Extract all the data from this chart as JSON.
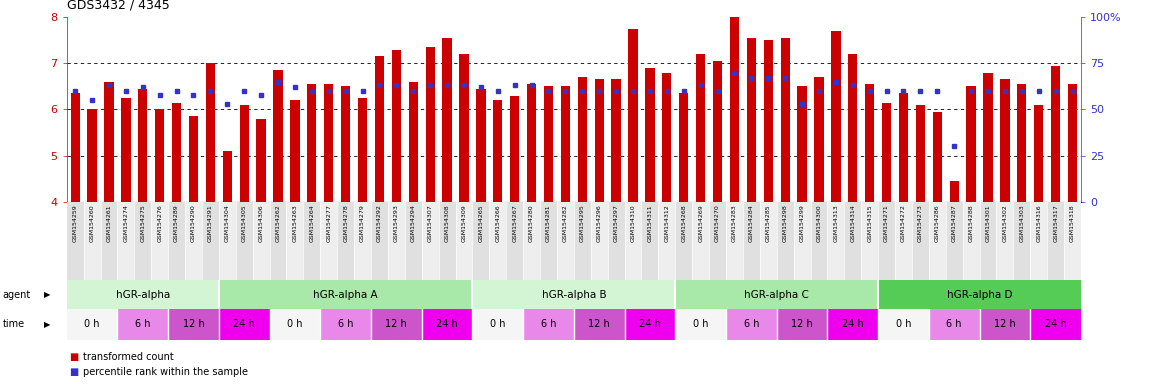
{
  "title": "GDS3432 / 4345",
  "ylim": [
    4,
    8
  ],
  "y2lim": [
    0,
    100
  ],
  "yticks": [
    4,
    5,
    6,
    7,
    8
  ],
  "y2ticks": [
    0,
    25,
    50,
    75,
    100
  ],
  "bar_color": "#CC0000",
  "dot_color": "#3333CC",
  "samples": [
    "GSM154259",
    "GSM154260",
    "GSM154261",
    "GSM154274",
    "GSM154275",
    "GSM154276",
    "GSM154289",
    "GSM154290",
    "GSM154291",
    "GSM154304",
    "GSM154305",
    "GSM154306",
    "GSM154262",
    "GSM154263",
    "GSM154264",
    "GSM154277",
    "GSM154278",
    "GSM154279",
    "GSM154292",
    "GSM154293",
    "GSM154294",
    "GSM154307",
    "GSM154308",
    "GSM154309",
    "GSM154265",
    "GSM154266",
    "GSM154267",
    "GSM154280",
    "GSM154281",
    "GSM154282",
    "GSM154295",
    "GSM154296",
    "GSM154297",
    "GSM154310",
    "GSM154311",
    "GSM154312",
    "GSM154268",
    "GSM154269",
    "GSM154270",
    "GSM154283",
    "GSM154284",
    "GSM154285",
    "GSM154298",
    "GSM154299",
    "GSM154300",
    "GSM154313",
    "GSM154314",
    "GSM154315",
    "GSM154271",
    "GSM154272",
    "GSM154273",
    "GSM154286",
    "GSM154287",
    "GSM154288",
    "GSM154301",
    "GSM154302",
    "GSM154303",
    "GSM154316",
    "GSM154317",
    "GSM154318"
  ],
  "bar_heights": [
    6.35,
    6.0,
    6.6,
    6.25,
    6.45,
    6.0,
    6.15,
    5.85,
    7.0,
    5.1,
    6.1,
    5.8,
    6.85,
    6.2,
    6.55,
    6.55,
    6.5,
    6.25,
    7.15,
    7.3,
    6.6,
    7.35,
    7.55,
    7.2,
    6.45,
    6.2,
    6.3,
    6.55,
    6.5,
    6.5,
    6.7,
    6.65,
    6.65,
    7.75,
    6.9,
    6.8,
    6.35,
    7.2,
    7.05,
    8.05,
    7.55,
    7.5,
    7.55,
    6.5,
    6.7,
    7.7,
    7.2,
    6.55,
    6.15,
    6.35,
    6.1,
    5.95,
    4.45,
    6.5,
    6.8,
    6.65,
    6.55,
    6.1,
    6.95,
    6.55
  ],
  "dot_percentiles": [
    60,
    55,
    63,
    60,
    62,
    58,
    60,
    58,
    60,
    53,
    60,
    58,
    65,
    62,
    60,
    60,
    60,
    60,
    63,
    63,
    60,
    63,
    63,
    63,
    62,
    60,
    63,
    63,
    60,
    60,
    60,
    60,
    60,
    60,
    60,
    60,
    60,
    63,
    60,
    70,
    67,
    67,
    67,
    53,
    60,
    65,
    63,
    60,
    60,
    60,
    60,
    60,
    30,
    60,
    60,
    60,
    60,
    60,
    60,
    60
  ],
  "agents": [
    {
      "label": "hGR-alpha",
      "start": 0,
      "end": 9,
      "color": "#d4f5d4"
    },
    {
      "label": "hGR-alpha A",
      "start": 9,
      "end": 24,
      "color": "#a8e8a8"
    },
    {
      "label": "hGR-alpha B",
      "start": 24,
      "end": 36,
      "color": "#d4f5d4"
    },
    {
      "label": "hGR-alpha C",
      "start": 36,
      "end": 48,
      "color": "#a8e8a8"
    },
    {
      "label": "hGR-alpha D",
      "start": 48,
      "end": 60,
      "color": "#55cc55"
    }
  ],
  "times": [
    {
      "label": "0 h",
      "start": 0,
      "end": 3,
      "color": "#f5f5f5"
    },
    {
      "label": "6 h",
      "start": 3,
      "end": 6,
      "color": "#e888e8"
    },
    {
      "label": "12 h",
      "start": 6,
      "end": 9,
      "color": "#cc55cc"
    },
    {
      "label": "24 h",
      "start": 9,
      "end": 12,
      "color": "#ee00ee"
    },
    {
      "label": "0 h",
      "start": 12,
      "end": 15,
      "color": "#f5f5f5"
    },
    {
      "label": "6 h",
      "start": 15,
      "end": 18,
      "color": "#e888e8"
    },
    {
      "label": "12 h",
      "start": 18,
      "end": 21,
      "color": "#cc55cc"
    },
    {
      "label": "24 h",
      "start": 21,
      "end": 24,
      "color": "#ee00ee"
    },
    {
      "label": "0 h",
      "start": 24,
      "end": 27,
      "color": "#f5f5f5"
    },
    {
      "label": "6 h",
      "start": 27,
      "end": 30,
      "color": "#e888e8"
    },
    {
      "label": "12 h",
      "start": 30,
      "end": 33,
      "color": "#cc55cc"
    },
    {
      "label": "24 h",
      "start": 33,
      "end": 36,
      "color": "#ee00ee"
    },
    {
      "label": "0 h",
      "start": 36,
      "end": 39,
      "color": "#f5f5f5"
    },
    {
      "label": "6 h",
      "start": 39,
      "end": 42,
      "color": "#e888e8"
    },
    {
      "label": "12 h",
      "start": 42,
      "end": 45,
      "color": "#cc55cc"
    },
    {
      "label": "24 h",
      "start": 45,
      "end": 48,
      "color": "#ee00ee"
    },
    {
      "label": "0 h",
      "start": 48,
      "end": 51,
      "color": "#f5f5f5"
    },
    {
      "label": "6 h",
      "start": 51,
      "end": 54,
      "color": "#e888e8"
    },
    {
      "label": "12 h",
      "start": 54,
      "end": 57,
      "color": "#cc55cc"
    },
    {
      "label": "24 h",
      "start": 57,
      "end": 60,
      "color": "#ee00ee"
    }
  ],
  "legend_bar_color": "#CC0000",
  "legend_dot_color": "#3333CC",
  "legend_bar_label": "transformed count",
  "legend_dot_label": "percentile rank within the sample",
  "background_color": "#ffffff",
  "tick_color_left": "#CC0000",
  "tick_color_right": "#3333CC"
}
